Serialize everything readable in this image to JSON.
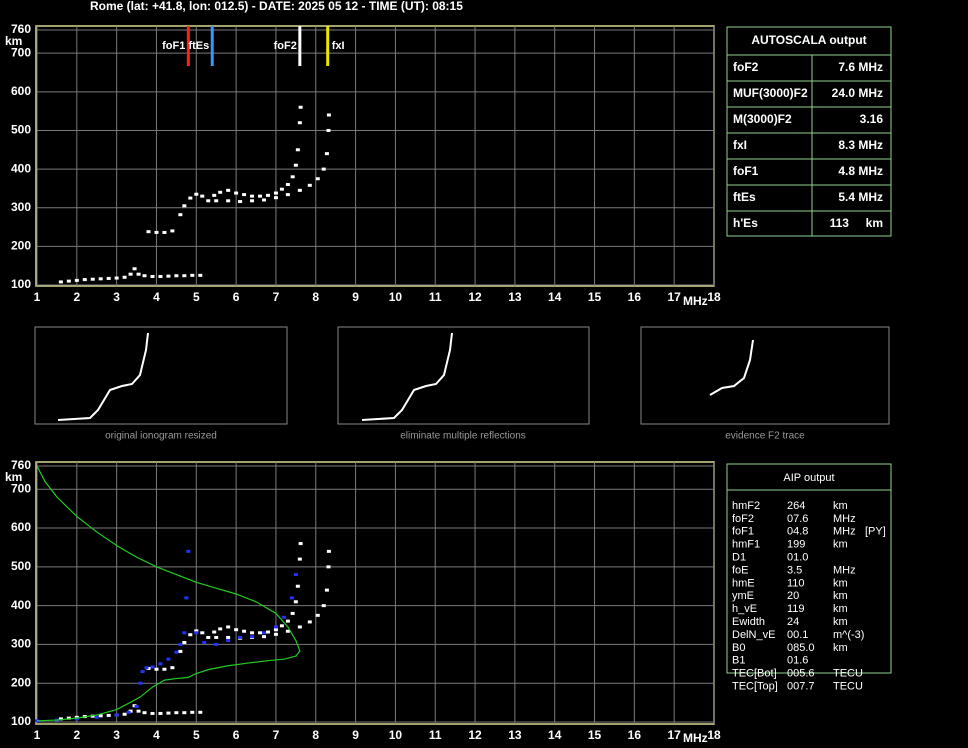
{
  "header": "Rome (lat: +41.8, lon: 012.5) - DATE: 2025 05 12 - TIME (UT): 08:15",
  "chart_data": [
    {
      "type": "scatter",
      "y_label": "km",
      "x_label": "MHz",
      "xlim": [
        1,
        18
      ],
      "ylim": [
        100,
        760
      ],
      "xticks": [
        1,
        2,
        3,
        4,
        5,
        6,
        7,
        8,
        9,
        10,
        11,
        12,
        13,
        14,
        15,
        16,
        17,
        18
      ],
      "yticks": [
        100,
        200,
        300,
        400,
        500,
        600,
        700,
        760
      ],
      "grid": true,
      "markers": [
        {
          "label": "foF1",
          "value": 4.8,
          "color": "#ff2020"
        },
        {
          "label": "ftEs",
          "value": 5.4,
          "color": "#3399ff"
        },
        {
          "label": "foF2",
          "value": 7.6,
          "color": "#ffffff"
        },
        {
          "label": "fxI",
          "value": 8.3,
          "color": "#e8e800"
        }
      ],
      "series": [
        {
          "color": "#ffffff",
          "x": [
            1.6,
            1.8,
            2,
            2.2,
            2.4,
            2.6,
            2.8,
            3,
            3.2,
            3.35,
            3.45,
            3.55,
            3.7,
            3.9,
            4.1,
            4.3,
            4.5,
            4.7,
            4.9,
            5.1,
            3.8,
            4,
            4.2,
            4.4,
            4.6,
            4.7,
            4.85,
            5,
            5.15,
            5.3,
            5.45,
            5.6,
            5.8,
            6,
            6.2,
            6.4,
            6.6,
            6.8,
            7,
            7.15,
            7.3,
            7.42,
            7.5,
            7.55,
            7.6,
            7.62,
            5.5,
            5.8,
            6.1,
            6.4,
            6.7,
            7,
            7.3,
            7.6,
            7.85,
            8.05,
            8.2,
            8.28,
            8.32,
            8.33
          ],
          "values": [
            108,
            110,
            112,
            114,
            115,
            116,
            117,
            118,
            120,
            128,
            142,
            128,
            124,
            122,
            122,
            123,
            124,
            124,
            125,
            125,
            238,
            236,
            236,
            240,
            282,
            305,
            325,
            335,
            330,
            318,
            332,
            340,
            345,
            338,
            334,
            330,
            330,
            332,
            338,
            348,
            360,
            380,
            410,
            450,
            520,
            560,
            318,
            318,
            316,
            318,
            320,
            326,
            334,
            345,
            358,
            375,
            400,
            440,
            500,
            540
          ]
        }
      ]
    },
    {
      "type": "scatter",
      "y_label": "km",
      "x_label": "MHz",
      "xlim": [
        1,
        18
      ],
      "ylim": [
        100,
        760
      ],
      "xticks": [
        1,
        2,
        3,
        4,
        5,
        6,
        7,
        8,
        9,
        10,
        11,
        12,
        13,
        14,
        15,
        16,
        17,
        18
      ],
      "yticks": [
        100,
        200,
        300,
        400,
        500,
        600,
        700,
        760
      ],
      "grid": true,
      "series": [
        {
          "color": "#ffffff",
          "x": [
            1.6,
            1.8,
            2,
            2.2,
            2.4,
            2.6,
            2.8,
            3,
            3.2,
            3.35,
            3.45,
            3.55,
            3.7,
            3.9,
            4.1,
            4.3,
            4.5,
            4.7,
            4.9,
            5.1,
            3.8,
            4,
            4.2,
            4.4,
            4.6,
            4.7,
            4.85,
            5,
            5.15,
            5.3,
            5.45,
            5.6,
            5.8,
            6,
            6.2,
            6.4,
            6.6,
            6.8,
            7,
            7.15,
            7.3,
            7.42,
            7.5,
            7.55,
            7.6,
            7.62,
            5.5,
            5.8,
            6.1,
            6.4,
            6.7,
            7,
            7.3,
            7.6,
            7.85,
            8.05,
            8.2,
            8.28,
            8.32,
            8.33
          ],
          "values": [
            108,
            110,
            112,
            114,
            115,
            116,
            117,
            118,
            120,
            128,
            142,
            128,
            124,
            122,
            122,
            123,
            124,
            124,
            125,
            125,
            238,
            236,
            236,
            240,
            282,
            305,
            325,
            335,
            330,
            318,
            332,
            340,
            345,
            338,
            334,
            330,
            330,
            332,
            338,
            348,
            360,
            380,
            410,
            450,
            520,
            560,
            318,
            318,
            316,
            318,
            320,
            326,
            334,
            345,
            358,
            375,
            400,
            440,
            500,
            540
          ]
        },
        {
          "color": "#2233ff",
          "x": [
            1,
            1.5,
            2,
            2.5,
            3,
            3.3,
            3.5,
            3.6,
            3.65,
            3.75,
            3.9,
            4.1,
            4.3,
            4.5,
            4.6,
            4.7,
            4.75,
            4.8,
            5,
            5.2,
            5.5,
            5.8,
            6.1,
            6.4,
            6.7,
            7,
            7.2,
            7.4,
            7.5
          ],
          "values": [
            103,
            105,
            108,
            112,
            118,
            125,
            140,
            200,
            230,
            240,
            242,
            250,
            262,
            280,
            300,
            330,
            420,
            540,
            330,
            305,
            300,
            310,
            318,
            320,
            330,
            345,
            370,
            420,
            480
          ]
        },
        {
          "color": "#22cc22",
          "type": "line",
          "x": [
            1,
            1.2,
            1.5,
            2,
            2.5,
            3,
            3.5,
            4,
            4.5,
            5,
            5.5,
            6,
            6.5,
            7,
            7.3,
            7.5,
            7.6,
            7.5,
            7.2,
            6.8,
            6.3,
            5.8,
            5.3,
            5,
            4.8,
            4.5,
            4.2,
            3.9,
            3.6,
            3.3,
            3,
            2.5,
            2,
            1.5,
            1
          ],
          "values": [
            760,
            720,
            680,
            630,
            590,
            555,
            525,
            500,
            480,
            460,
            445,
            430,
            410,
            380,
            345,
            310,
            283,
            270,
            262,
            258,
            252,
            245,
            235,
            225,
            215,
            212,
            208,
            190,
            165,
            148,
            132,
            118,
            110,
            105,
            103
          ]
        }
      ]
    }
  ],
  "thumbnails": [
    "original ionogram resized",
    "eliminate multiple reflections",
    "evidence F2 trace"
  ],
  "autoscala": {
    "title": "AUTOSCALA output",
    "rows": [
      {
        "label": "foF2",
        "value": "7.6 MHz",
        "color": "#ffffff"
      },
      {
        "label": "MUF(3000)F2",
        "value": "24.0 MHz",
        "color": "#ffffff"
      },
      {
        "label": "M(3000)F2",
        "value": "3.16",
        "color": "#ffffff"
      },
      {
        "label": "fxI",
        "value": "8.3 MHz",
        "color": "#e8e800"
      },
      {
        "label": "foF1",
        "value": "4.8 MHz",
        "color": "#ff2020"
      },
      {
        "label": "ftEs",
        "value": "5.4 MHz",
        "color": "#3399ff"
      },
      {
        "label": "h'Es",
        "value": "113     km",
        "color": "#ffffff"
      }
    ]
  },
  "aip": {
    "title": "AIP output",
    "rows": [
      [
        "hmF2",
        "264",
        "km"
      ],
      [
        "foF2",
        "07.6",
        "MHz"
      ],
      [
        "foF1",
        "04.8",
        "MHz",
        "[PY]"
      ],
      [
        "hmF1",
        "199",
        "km"
      ],
      [
        "D1",
        "01.0"
      ],
      [
        "foE",
        "3.5",
        "MHz"
      ],
      [
        "hmE",
        "110",
        "km"
      ],
      [
        "ymE",
        "20",
        "km"
      ],
      [
        "h_vE",
        "119",
        "km"
      ],
      [
        "Ewidth",
        "24",
        "km"
      ],
      [
        "DelN_vE",
        "00.1",
        "m^(-3)"
      ],
      [
        "B0",
        "085.0",
        "km"
      ],
      [
        "B1",
        "01.6"
      ],
      [
        "TEC[Bot]",
        "005.6",
        "TECU"
      ],
      [
        "TEC[Top]",
        "007.7",
        "TECU"
      ]
    ]
  }
}
